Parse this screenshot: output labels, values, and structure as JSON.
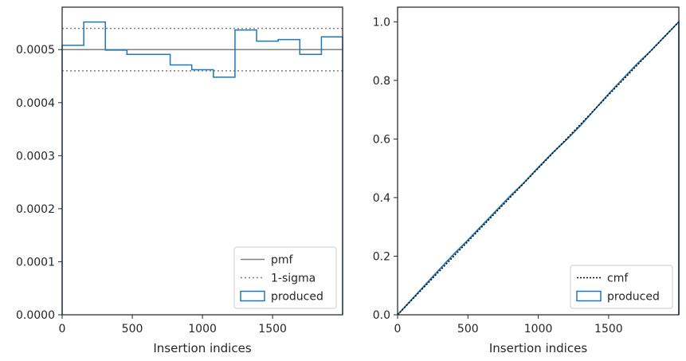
{
  "chart_data": [
    {
      "type": "line",
      "drawstyle": "steps",
      "xlabel": "Insertion indices",
      "ylabel": "",
      "xlim": [
        0,
        1999
      ],
      "ylim": [
        0,
        0.00058
      ],
      "x_ticks": [
        0,
        500,
        1000,
        1500
      ],
      "x_tick_labels": [
        "0",
        "500",
        "1000",
        "1500"
      ],
      "y_ticks": [
        0,
        0.0001,
        0.0002,
        0.0003,
        0.0004,
        0.0005
      ],
      "y_tick_labels": [
        "0.0000",
        "0.0001",
        "0.0002",
        "0.0003",
        "0.0004",
        "0.0005"
      ],
      "grid": false,
      "legend_position": "lower-right",
      "legend": [
        "pmf",
        "1-sigma",
        "produced"
      ],
      "reference_lines": [
        {
          "name": "pmf",
          "y": 0.0005,
          "style": "solid",
          "color": "#808080"
        },
        {
          "name": "1-sigma",
          "y": 0.00054,
          "style": "dotted",
          "color": "#808080"
        },
        {
          "name": "1-sigma",
          "y": 0.00046,
          "style": "dotted",
          "color": "#808080"
        }
      ],
      "series": [
        {
          "name": "produced",
          "color": "#1f77b4",
          "bin_edges": [
            0,
            154,
            308,
            462,
            616,
            770,
            924,
            1078,
            1232,
            1386,
            1540,
            1694,
            1848,
            1999
          ],
          "values": [
            0.000508,
            0.000552,
            0.000499,
            0.000491,
            0.000491,
            0.000471,
            0.000462,
            0.000448,
            0.000537,
            0.000516,
            0.000519,
            0.000491,
            0.000524
          ]
        }
      ]
    },
    {
      "type": "line",
      "xlabel": "Insertion indices",
      "ylabel": "",
      "xlim": [
        0,
        1999
      ],
      "ylim": [
        0,
        1.05
      ],
      "x_ticks": [
        0,
        500,
        1000,
        1500
      ],
      "x_tick_labels": [
        "0",
        "500",
        "1000",
        "1500"
      ],
      "y_ticks": [
        0,
        0.2,
        0.4,
        0.6,
        0.8,
        1.0
      ],
      "y_tick_labels": [
        "0.0",
        "0.2",
        "0.4",
        "0.6",
        "0.8",
        "1.0"
      ],
      "grid": false,
      "legend_position": "lower-right",
      "legend": [
        "cmf",
        "produced"
      ],
      "series": [
        {
          "name": "cmf",
          "style": "dotted",
          "color": "#000000",
          "x": [
            0,
            1999
          ],
          "y": [
            0,
            1.0
          ]
        },
        {
          "name": "produced",
          "style": "solid",
          "color": "#1f77b4",
          "x": [
            0,
            100,
            200,
            300,
            400,
            500,
            600,
            700,
            800,
            900,
            1000,
            1100,
            1200,
            1300,
            1400,
            1500,
            1600,
            1700,
            1800,
            1900,
            1999
          ],
          "y": [
            0,
            0.052,
            0.104,
            0.156,
            0.207,
            0.255,
            0.305,
            0.355,
            0.405,
            0.452,
            0.503,
            0.552,
            0.597,
            0.646,
            0.7,
            0.754,
            0.805,
            0.855,
            0.901,
            0.951,
            1.0
          ]
        }
      ]
    }
  ]
}
